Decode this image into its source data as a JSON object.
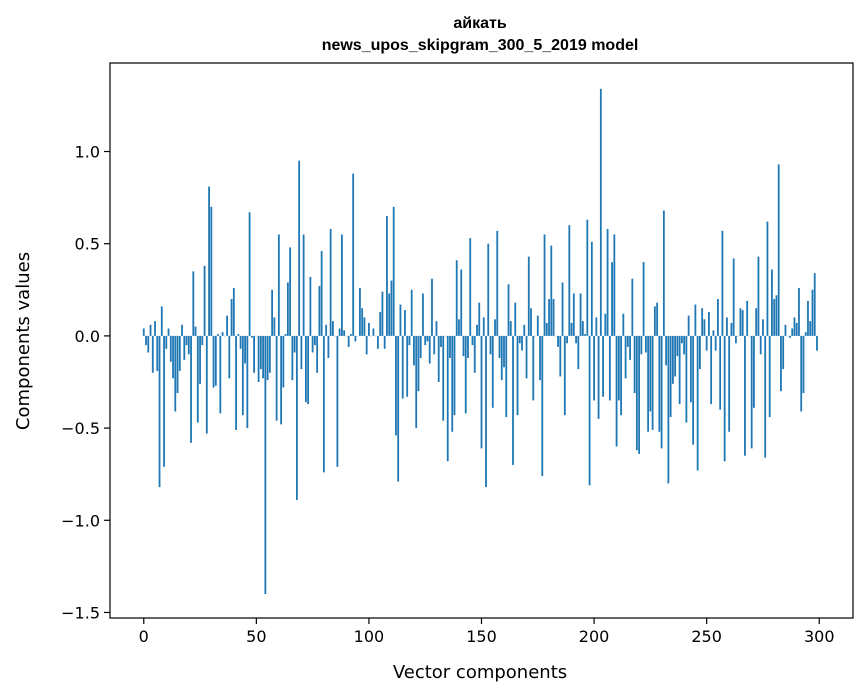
{
  "chart_data": {
    "type": "bar",
    "title": "айкать",
    "subtitle": "news_upos_skipgram_300_5_2019 model",
    "xlabel": "Vector components",
    "ylabel": "Components values",
    "xlim": [
      -15,
      315
    ],
    "ylim": [
      -1.53,
      1.48
    ],
    "xticks": [
      0,
      50,
      100,
      150,
      200,
      250,
      300
    ],
    "yticks": [
      1.0,
      0.5,
      0.0,
      -0.5,
      -1.0,
      -1.5
    ],
    "ytick_labels": [
      "1.0",
      "0.5",
      "0.0",
      "−0.5",
      "−1.0",
      "−1.5"
    ],
    "bar_color": "#1f77b4",
    "values": [
      0.04,
      -0.05,
      -0.09,
      0.06,
      -0.2,
      0.08,
      -0.19,
      -0.82,
      0.16,
      -0.71,
      -0.07,
      0.04,
      -0.14,
      -0.23,
      -0.41,
      -0.31,
      -0.19,
      0.06,
      -0.13,
      -0.05,
      -0.1,
      -0.58,
      0.35,
      0.05,
      -0.47,
      -0.26,
      -0.05,
      0.38,
      -0.53,
      0.81,
      0.7,
      -0.28,
      -0.27,
      0.01,
      -0.42,
      0.02,
      0.0,
      0.11,
      -0.23,
      0.2,
      0.26,
      -0.51,
      0.01,
      -0.07,
      -0.43,
      -0.15,
      -0.5,
      0.67,
      -0.01,
      -0.2,
      0.0,
      -0.25,
      -0.18,
      -0.23,
      -1.4,
      -0.24,
      -0.2,
      0.25,
      0.1,
      -0.46,
      0.55,
      -0.48,
      -0.28,
      0.01,
      0.29,
      0.48,
      -0.24,
      -0.09,
      -0.89,
      0.95,
      -0.18,
      0.55,
      -0.36,
      -0.37,
      0.32,
      -0.09,
      -0.05,
      -0.2,
      0.27,
      0.46,
      -0.74,
      0.06,
      -0.12,
      0.58,
      0.08,
      0.0,
      -0.71,
      0.04,
      0.55,
      0.03,
      0.0,
      -0.06,
      0.01,
      0.88,
      -0.03,
      0.0,
      0.26,
      0.15,
      0.1,
      -0.1,
      0.07,
      0.0,
      0.04,
      0.0,
      -0.07,
      0.13,
      0.24,
      -0.07,
      0.65,
      0.23,
      0.3,
      0.7,
      -0.54,
      -0.79,
      0.17,
      -0.34,
      0.14,
      -0.33,
      -0.05,
      0.25,
      -0.16,
      -0.5,
      -0.3,
      -0.12,
      0.23,
      -0.05,
      -0.03,
      -0.15,
      0.31,
      -0.1,
      0.08,
      -0.25,
      -0.06,
      -0.46,
      0.0,
      -0.68,
      -0.12,
      -0.52,
      -0.43,
      0.41,
      0.09,
      0.36,
      -0.11,
      -0.42,
      -0.12,
      0.53,
      -0.05,
      -0.2,
      0.06,
      0.18,
      -0.61,
      0.1,
      -0.82,
      0.5,
      -0.1,
      -0.39,
      0.09,
      0.57,
      -0.12,
      -0.24,
      -0.17,
      -0.44,
      0.28,
      0.08,
      -0.7,
      0.18,
      -0.43,
      -0.04,
      -0.08,
      0.06,
      -0.23,
      0.43,
      0.15,
      -0.35,
      0.0,
      0.11,
      -0.24,
      -0.76,
      0.55,
      0.07,
      0.2,
      0.49,
      0.2,
      0.0,
      -0.06,
      -0.22,
      0.29,
      -0.43,
      -0.04,
      0.6,
      0.07,
      0.23,
      -0.04,
      -0.18,
      0.23,
      0.08,
      0.01,
      0.63,
      -0.81,
      0.51,
      -0.35,
      0.1,
      -0.45,
      1.34,
      -0.33,
      0.12,
      0.58,
      -0.35,
      0.4,
      0.55,
      -0.6,
      -0.35,
      -0.43,
      0.12,
      -0.23,
      -0.06,
      -0.13,
      0.31,
      -0.31,
      -0.62,
      -0.64,
      -0.1,
      0.4,
      -0.09,
      -0.52,
      -0.41,
      -0.51,
      0.16,
      0.18,
      -0.52,
      -0.61,
      0.68,
      -0.16,
      -0.8,
      -0.44,
      -0.26,
      -0.22,
      -0.11,
      -0.37,
      -0.04,
      -0.1,
      -0.47,
      0.11,
      -0.36,
      -0.59,
      0.17,
      -0.73,
      -0.18,
      0.15,
      0.09,
      -0.08,
      0.13,
      -0.37,
      0.03,
      -0.08,
      0.2,
      -0.4,
      0.57,
      -0.68,
      0.1,
      -0.52,
      0.07,
      0.42,
      -0.04,
      0.0,
      0.15,
      0.14,
      -0.65,
      0.19,
      0.0,
      -0.61,
      -0.39,
      0.15,
      0.43,
      -0.1,
      0.09,
      -0.66,
      0.62,
      -0.44,
      0.36,
      0.2,
      0.22,
      0.93,
      -0.3,
      -0.18,
      0.06,
      0.0,
      -0.01,
      0.04,
      0.1,
      0.07,
      0.26,
      -0.41,
      -0.31,
      0.02,
      0.19,
      0.08,
      0.25,
      0.34,
      -0.08
    ]
  }
}
